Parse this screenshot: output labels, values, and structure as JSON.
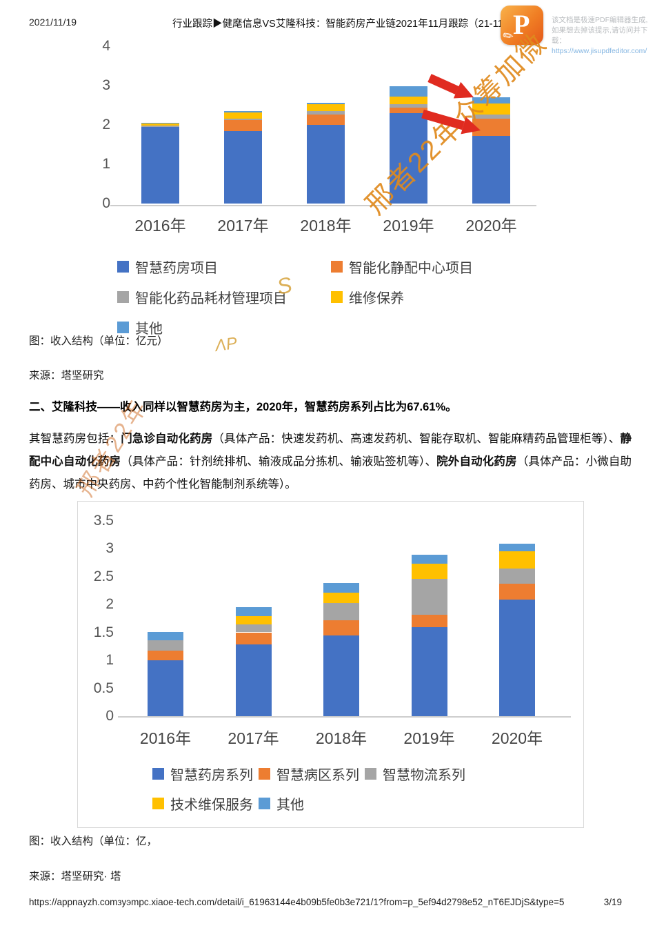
{
  "header": {
    "date": "2021/11/19",
    "title": "行业跟踪▶健麾信息VS艾隆科技：智能药房产业链2021年11月跟踪（21-11-19",
    "pdf_promo": {
      "logo_letter": "P",
      "line1": "该文档是极速PDF编辑器生成,",
      "line2": "如果想去掉该提示,请访问并下载：",
      "link": "https://www.jisupdfeditor.com/"
    }
  },
  "watermarks": {
    "chart1_diagonal": "邢者22年众筹加微",
    "paragraph_diagonal": "邢者22年",
    "legend_scribble": "S",
    "caption_scribble": "ΛP"
  },
  "chart_data": [
    {
      "type": "bar",
      "stacked": true,
      "title": "",
      "xlabel": "",
      "ylabel": "",
      "categories": [
        "2016年",
        "2017年",
        "2018年",
        "2019年",
        "2020年"
      ],
      "series": [
        {
          "name": "智慧药房项目",
          "color": "#4472C4",
          "values": [
            1.95,
            1.85,
            2.0,
            2.3,
            1.72
          ]
        },
        {
          "name": "智能化静配中心项目",
          "color": "#ED7D31",
          "values": [
            0.02,
            0.28,
            0.27,
            0.13,
            0.44
          ]
        },
        {
          "name": "智能化药品耗材管理项目",
          "color": "#A5A5A5",
          "values": [
            0.01,
            0.03,
            0.08,
            0.09,
            0.1
          ]
        },
        {
          "name": "维修保养",
          "color": "#FFC000",
          "values": [
            0.07,
            0.17,
            0.18,
            0.2,
            0.28
          ]
        },
        {
          "name": "其他",
          "color": "#5B9BD5",
          "values": [
            0.01,
            0.02,
            0.04,
            0.27,
            0.16
          ]
        }
      ],
      "ylim": [
        0,
        4
      ],
      "yticks": [
        0,
        1,
        2,
        3,
        4
      ],
      "grid": false,
      "legend_position": "bottom"
    },
    {
      "type": "bar",
      "stacked": true,
      "title": "",
      "xlabel": "",
      "ylabel": "",
      "categories": [
        "2016年",
        "2017年",
        "2018年",
        "2019年",
        "2020年"
      ],
      "series": [
        {
          "name": "智慧药房系列",
          "color": "#4472C4",
          "values": [
            1.0,
            1.28,
            1.44,
            1.59,
            2.09
          ]
        },
        {
          "name": "智慧病区系列",
          "color": "#ED7D31",
          "values": [
            0.17,
            0.22,
            0.27,
            0.22,
            0.28
          ]
        },
        {
          "name": "智慧物流系列",
          "color": "#A5A5A5",
          "values": [
            0.19,
            0.14,
            0.31,
            0.65,
            0.27
          ]
        },
        {
          "name": "技术维保服务",
          "color": "#FFC000",
          "values": [
            0.0,
            0.15,
            0.19,
            0.27,
            0.31
          ]
        },
        {
          "name": "其他",
          "color": "#5B9BD5",
          "values": [
            0.15,
            0.16,
            0.17,
            0.16,
            0.14
          ]
        }
      ],
      "ylim": [
        0,
        3.5
      ],
      "yticks": [
        0,
        0.5,
        1,
        1.5,
        2,
        2.5,
        3,
        3.5
      ],
      "grid": false,
      "legend_position": "bottom"
    }
  ],
  "captions1": {
    "figure": "图：收入结构（单位：亿元）",
    "source": "来源：塔坚研究"
  },
  "section": {
    "heading": "二、艾隆科技——收入同样以智慧药房为主，2020年，智慧药房系列占比为67.61%。",
    "para_runs": [
      {
        "text": "其智慧药房包括：",
        "bold": false
      },
      {
        "text": "门急诊自动化药房",
        "bold": true
      },
      {
        "text": "（具体产品：快速发药机、高速发药机、智能存取机、智能麻精药品管理柜等）、",
        "bold": false
      },
      {
        "text": "静配中心自动化药房",
        "bold": true
      },
      {
        "text": "（具体产品：针剂统排机、输液成品分拣机、输液贴签机等）、",
        "bold": false
      },
      {
        "text": "院外自动化药房",
        "bold": true
      },
      {
        "text": "（具体产品：小微自助药房、城市中央药房、中药个性化智能制剂系统等）。",
        "bold": false
      }
    ]
  },
  "captions2": {
    "figure": "图：收入结构（单位：亿，",
    "source": "来源：塔坚研究· 塔"
  },
  "footer": {
    "url": "https://appnayzh.comзyэmpc.xiaoe-tech.com/detail/i_61963144e4b09b5fe0b3e721/1?from=p_5ef94d2798e52_nT6EJDjS&type=5",
    "page": "3/19"
  }
}
